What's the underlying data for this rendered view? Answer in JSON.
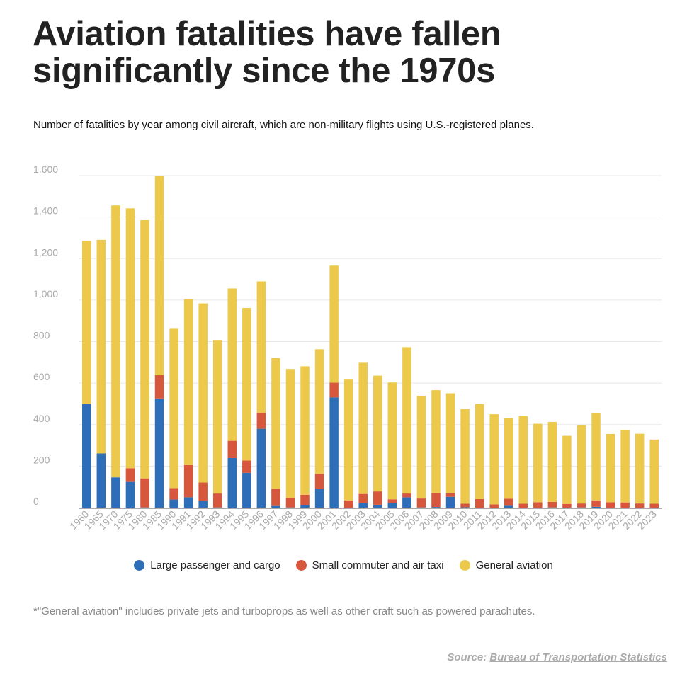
{
  "title": {
    "line1": "Aviation fatalities have fallen",
    "line2": "significantly since the 1970s"
  },
  "subtitle": "Number of fatalities by year among civil aircraft, which are non-military flights using U.S.-registered planes.",
  "footnote": "*\"General aviation\" includes private jets and turboprops as well as other craft such as powered parachutes.",
  "source": {
    "prefix": "Source: ",
    "link_text": "Bureau of Transportation Statistics"
  },
  "colors": {
    "large": "#2E6DB8",
    "small": "#D6573C",
    "general": "#EDC94B",
    "grid": "#e8e8e8",
    "axis": "#aaaaaa",
    "tick": "#aaaaaa"
  },
  "chart_data": {
    "type": "bar",
    "stacked": true,
    "title": "Aviation fatalities have fallen significantly since the 1970s",
    "xlabel": "",
    "ylabel": "",
    "ylim": [
      0,
      1600
    ],
    "yticks": [
      0,
      200,
      400,
      600,
      800,
      1000,
      1200,
      1400,
      1600
    ],
    "ytick_labels": [
      "0",
      "200",
      "400",
      "600",
      "800",
      "1,000",
      "1,200",
      "1,400",
      "1,600"
    ],
    "grid": true,
    "legend_position": "bottom",
    "categories": [
      "1960",
      "1965",
      "1970",
      "1975",
      "1980",
      "1985",
      "1990",
      "1991",
      "1992",
      "1993",
      "1994",
      "1995",
      "1996",
      "1997",
      "1998",
      "1999",
      "2000",
      "2001",
      "2002",
      "2003",
      "2004",
      "2005",
      "2006",
      "2007",
      "2008",
      "2009",
      "2010",
      "2011",
      "2012",
      "2013",
      "2014",
      "2015",
      "2016",
      "2017",
      "2018",
      "2019",
      "2020",
      "2021",
      "2022",
      "2023"
    ],
    "series": [
      {
        "name": "Large passenger and cargo",
        "key": "large",
        "values": [
          499,
          261,
          146,
          124,
          1,
          526,
          39,
          50,
          33,
          1,
          239,
          168,
          380,
          8,
          1,
          12,
          92,
          531,
          0,
          22,
          14,
          22,
          50,
          1,
          3,
          52,
          2,
          0,
          0,
          9,
          0,
          0,
          1,
          0,
          1,
          4,
          0,
          0,
          0,
          0
        ]
      },
      {
        "name": "Small commuter and air taxi",
        "key": "small",
        "values": [
          0,
          0,
          0,
          66,
          140,
          112,
          55,
          155,
          88,
          67,
          83,
          59,
          76,
          83,
          45,
          50,
          71,
          71,
          35,
          44,
          64,
          18,
          18,
          43,
          69,
          17,
          17,
          41,
          16,
          34,
          19,
          26,
          27,
          18,
          19,
          31,
          26,
          25,
          20,
          19
        ]
      },
      {
        "name": "General aviation",
        "key": "general",
        "values": [
          787,
          1029,
          1310,
          1252,
          1244,
          962,
          771,
          801,
          863,
          740,
          734,
          735,
          634,
          630,
          622,
          619,
          600,
          564,
          582,
          632,
          558,
          563,
          705,
          495,
          494,
          482,
          456,
          458,
          434,
          388,
          421,
          378,
          385,
          328,
          377,
          420,
          329,
          348,
          336,
          309
        ]
      }
    ]
  }
}
